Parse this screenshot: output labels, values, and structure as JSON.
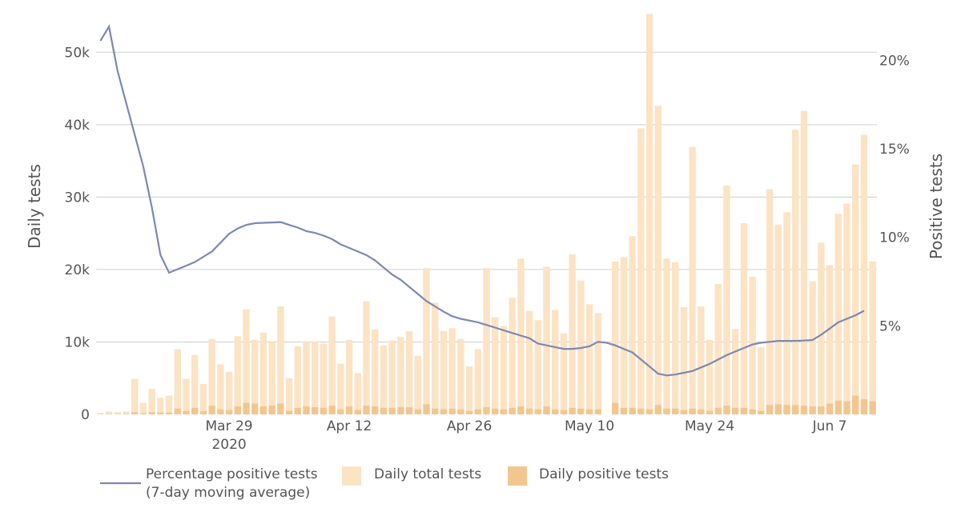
{
  "chart_data": {
    "type": "bar+line",
    "title": "",
    "y_left": {
      "label": "Daily tests",
      "ylim": [
        0,
        55000
      ],
      "ticks": [
        0,
        10000,
        20000,
        30000,
        40000,
        50000
      ],
      "tick_labels": [
        "0",
        "10k",
        "20k",
        "30k",
        "40k",
        "50k"
      ]
    },
    "y_right": {
      "label": "Positive tests",
      "ylim": [
        0,
        22.5
      ],
      "ticks": [
        5,
        10,
        15,
        20
      ],
      "tick_labels": [
        "5%",
        "10%",
        "15%",
        "20%"
      ]
    },
    "x_ticks": [
      {
        "day": 15,
        "label": "Mar 29",
        "sublabel": "2020"
      },
      {
        "day": 29,
        "label": "Apr 12",
        "sublabel": ""
      },
      {
        "day": 43,
        "label": "Apr 26",
        "sublabel": ""
      },
      {
        "day": 57,
        "label": "May 10",
        "sublabel": ""
      },
      {
        "day": 71,
        "label": "May 24",
        "sublabel": ""
      },
      {
        "day": 85,
        "label": "Jun 7",
        "sublabel": ""
      }
    ],
    "series": [
      {
        "name": "Daily total tests",
        "kind": "bar",
        "color": "#fbe3c4",
        "values": [
          200,
          400,
          300,
          400,
          4900,
          1600,
          3500,
          2300,
          2600,
          9000,
          4900,
          8200,
          4200,
          10400,
          6900,
          5900,
          10800,
          14500,
          10300,
          11300,
          10000,
          14900,
          5000,
          9400,
          10100,
          10100,
          9800,
          13500,
          7000,
          10300,
          5700,
          15600,
          11700,
          9500,
          10200,
          10700,
          11500,
          8100,
          20200,
          15400,
          11500,
          11900,
          10400,
          6600,
          9000,
          20200,
          13400,
          12200,
          16100,
          21500,
          14300,
          13000,
          20400,
          14400,
          11200,
          22100,
          18500,
          15200,
          14000,
          null,
          21100,
          21700,
          24600,
          39500,
          55300,
          42600,
          21500,
          21000,
          14800,
          36900,
          14900,
          10300,
          18000,
          31600,
          11800,
          26400,
          19000,
          9300,
          31100,
          26200,
          27900,
          39300,
          41900,
          18400,
          23700,
          20600,
          27700,
          29100,
          34500,
          38600,
          21100
        ]
      },
      {
        "name": "Daily positive tests",
        "kind": "bar",
        "color": "#f3c690",
        "values": [
          20,
          30,
          30,
          40,
          300,
          150,
          300,
          250,
          250,
          800,
          450,
          900,
          450,
          1200,
          700,
          600,
          1100,
          1600,
          1500,
          1100,
          1200,
          1500,
          500,
          900,
          1100,
          1000,
          900,
          1200,
          700,
          1100,
          600,
          1200,
          1100,
          900,
          900,
          1000,
          1000,
          700,
          1400,
          800,
          700,
          800,
          700,
          500,
          700,
          1000,
          800,
          700,
          900,
          1100,
          800,
          700,
          1100,
          700,
          600,
          900,
          800,
          700,
          700,
          null,
          1600,
          900,
          900,
          800,
          700,
          1300,
          800,
          800,
          600,
          800,
          700,
          500,
          900,
          1200,
          900,
          900,
          700,
          500,
          1300,
          1400,
          1300,
          1300,
          1200,
          1100,
          1100,
          1500,
          1900,
          1800,
          2600,
          2100,
          1800
        ]
      },
      {
        "name": "Percentage positive tests\n(7-day moving average)",
        "kind": "line",
        "color": "#7b89b3",
        "points": [
          [
            0,
            21.1
          ],
          [
            1,
            21.9
          ],
          [
            2,
            19.4
          ],
          [
            3,
            17.6
          ],
          [
            4,
            15.8
          ],
          [
            5,
            14.0
          ],
          [
            6,
            11.7
          ],
          [
            7,
            9.0
          ],
          [
            8,
            8.0
          ],
          [
            9,
            8.2
          ],
          [
            10,
            8.4
          ],
          [
            11,
            8.6
          ],
          [
            12,
            8.9
          ],
          [
            13,
            9.2
          ],
          [
            14,
            9.7
          ],
          [
            15,
            10.2
          ],
          [
            16,
            10.5
          ],
          [
            17,
            10.7
          ],
          [
            18,
            10.8
          ],
          [
            19,
            10.82
          ],
          [
            20,
            10.84
          ],
          [
            21,
            10.86
          ],
          [
            22,
            10.7
          ],
          [
            23,
            10.55
          ],
          [
            24,
            10.35
          ],
          [
            25,
            10.25
          ],
          [
            26,
            10.1
          ],
          [
            27,
            9.9
          ],
          [
            28,
            9.6
          ],
          [
            29,
            9.4
          ],
          [
            30,
            9.2
          ],
          [
            31,
            9.0
          ],
          [
            32,
            8.7
          ],
          [
            33,
            8.3
          ],
          [
            34,
            7.9
          ],
          [
            35,
            7.6
          ],
          [
            36,
            7.2
          ],
          [
            37,
            6.8
          ],
          [
            38,
            6.4
          ],
          [
            39,
            6.1
          ],
          [
            40,
            5.8
          ],
          [
            41,
            5.55
          ],
          [
            42,
            5.4
          ],
          [
            43,
            5.3
          ],
          [
            44,
            5.2
          ],
          [
            45,
            5.05
          ],
          [
            46,
            4.9
          ],
          [
            47,
            4.75
          ],
          [
            48,
            4.6
          ],
          [
            49,
            4.45
          ],
          [
            50,
            4.3
          ],
          [
            51,
            4.0
          ],
          [
            52,
            3.9
          ],
          [
            53,
            3.8
          ],
          [
            54,
            3.7
          ],
          [
            55,
            3.7
          ],
          [
            56,
            3.75
          ],
          [
            57,
            3.85
          ],
          [
            58,
            4.1
          ],
          [
            59,
            4.05
          ],
          [
            60,
            3.9
          ],
          [
            61,
            3.7
          ],
          [
            62,
            3.5
          ],
          [
            63,
            3.1
          ],
          [
            64,
            2.7
          ],
          [
            65,
            2.3
          ],
          [
            66,
            2.2
          ],
          [
            67,
            2.25
          ],
          [
            68,
            2.35
          ],
          [
            69,
            2.45
          ],
          [
            70,
            2.65
          ],
          [
            71,
            2.85
          ],
          [
            72,
            3.1
          ],
          [
            73,
            3.35
          ],
          [
            74,
            3.55
          ],
          [
            75,
            3.75
          ],
          [
            76,
            3.95
          ],
          [
            77,
            4.05
          ],
          [
            78,
            4.1
          ],
          [
            79,
            4.15
          ],
          [
            80,
            4.15
          ],
          [
            81,
            4.15
          ],
          [
            82,
            4.17
          ],
          [
            83,
            4.2
          ],
          [
            84,
            4.5
          ],
          [
            85,
            4.85
          ],
          [
            86,
            5.2
          ],
          [
            87,
            5.4
          ],
          [
            88,
            5.6
          ],
          [
            89,
            5.85
          ]
        ]
      }
    ],
    "grid": true,
    "legend_position": "bottom-left"
  }
}
